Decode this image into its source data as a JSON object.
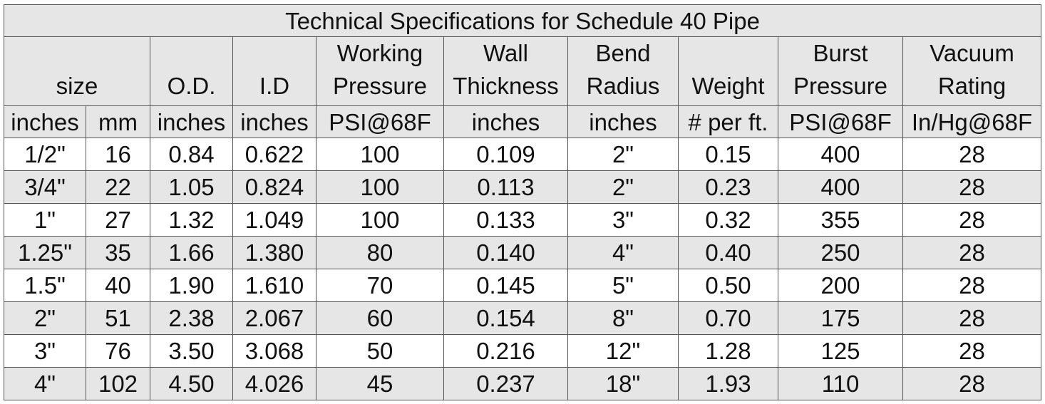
{
  "table": {
    "title": "Technical Specifications for Schedule 40 Pipe",
    "headers": [
      {
        "lines": [
          "",
          "size"
        ],
        "span": 2
      },
      {
        "lines": [
          "",
          "O.D."
        ],
        "span": 1
      },
      {
        "lines": [
          "",
          "I.D"
        ],
        "span": 1
      },
      {
        "lines": [
          "Working",
          "Pressure"
        ],
        "span": 1
      },
      {
        "lines": [
          "Wall",
          "Thickness"
        ],
        "span": 1
      },
      {
        "lines": [
          "Bend",
          "Radius"
        ],
        "span": 1
      },
      {
        "lines": [
          "",
          "Weight"
        ],
        "span": 1
      },
      {
        "lines": [
          "Burst",
          "Pressure"
        ],
        "span": 1
      },
      {
        "lines": [
          "Vacuum",
          "Rating"
        ],
        "span": 1
      }
    ],
    "units": [
      "inches",
      "mm",
      "inches",
      "inches",
      "PSI@68F",
      "inches",
      "inches",
      "# per ft.",
      "PSI@68F",
      "In/Hg@68F"
    ],
    "rows": [
      [
        "1/2\"",
        "16",
        "0.84",
        "0.622",
        "100",
        "0.109",
        "2\"",
        "0.15",
        "400",
        "28"
      ],
      [
        "3/4\"",
        "22",
        "1.05",
        "0.824",
        "100",
        "0.113",
        "2\"",
        "0.23",
        "400",
        "28"
      ],
      [
        "1\"",
        "27",
        "1.32",
        "1.049",
        "100",
        "0.133",
        "3\"",
        "0.32",
        "355",
        "28"
      ],
      [
        "1.25\"",
        "35",
        "1.66",
        "1.380",
        "80",
        "0.140",
        "4\"",
        "0.40",
        "250",
        "28"
      ],
      [
        "1.5\"",
        "40",
        "1.90",
        "1.610",
        "70",
        "0.145",
        "5\"",
        "0.50",
        "200",
        "28"
      ],
      [
        "2\"",
        "51",
        "2.38",
        "2.067",
        "60",
        "0.154",
        "8\"",
        "0.70",
        "175",
        "28"
      ],
      [
        "3\"",
        "76",
        "3.50",
        "3.068",
        "50",
        "0.216",
        "12\"",
        "1.28",
        "125",
        "28"
      ],
      [
        "4\"",
        "102",
        "4.50",
        "4.026",
        "45",
        "0.237",
        "18\"",
        "1.93",
        "110",
        "28"
      ]
    ]
  }
}
